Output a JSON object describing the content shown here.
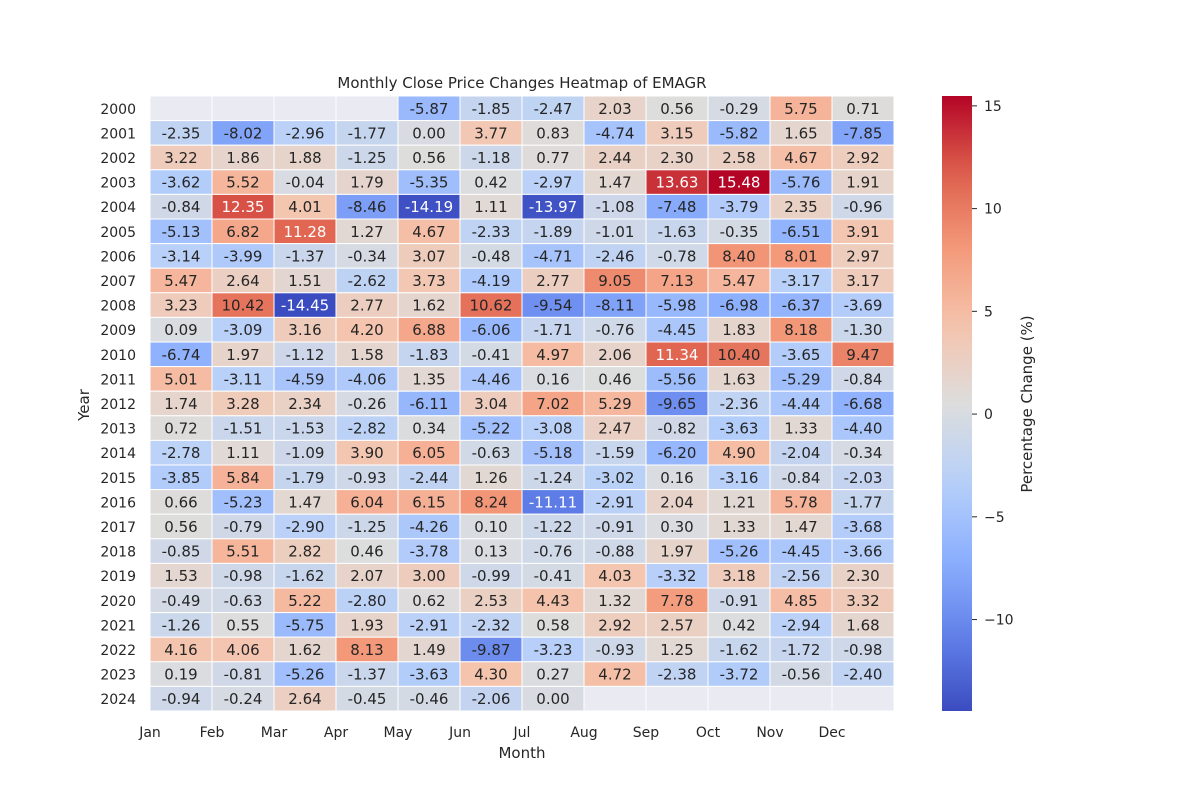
{
  "chart_data": {
    "type": "heatmap",
    "title": "Monthly Close Price Changes Heatmap of EMAGR",
    "xlabel": "Month",
    "ylabel": "Year",
    "colorbar_label": "Percentage Change (%)",
    "colorbar_ticks": [
      "−10",
      "−5",
      "0",
      "5",
      "10",
      "15"
    ],
    "colorbar_tick_values": [
      -10,
      -5,
      0,
      5,
      10,
      15
    ],
    "value_range": [
      -14.45,
      15.48
    ],
    "colormap": "coolwarm",
    "missing_color": "#eaeaf2",
    "months": [
      "Jan",
      "Feb",
      "Mar",
      "Apr",
      "May",
      "Jun",
      "Jul",
      "Aug",
      "Sep",
      "Oct",
      "Nov",
      "Dec"
    ],
    "years": [
      "2000",
      "2001",
      "2002",
      "2003",
      "2004",
      "2005",
      "2006",
      "2007",
      "2008",
      "2009",
      "2010",
      "2011",
      "2012",
      "2013",
      "2014",
      "2015",
      "2016",
      "2017",
      "2018",
      "2019",
      "2020",
      "2021",
      "2022",
      "2023",
      "2024"
    ],
    "values": [
      [
        null,
        null,
        null,
        null,
        -5.87,
        -1.85,
        -2.47,
        2.03,
        0.56,
        -0.29,
        5.75,
        0.71
      ],
      [
        -2.35,
        -8.02,
        -2.96,
        -1.77,
        0.0,
        3.77,
        0.83,
        -4.74,
        3.15,
        -5.82,
        1.65,
        -7.85
      ],
      [
        3.22,
        1.86,
        1.88,
        -1.25,
        0.56,
        -1.18,
        0.77,
        2.44,
        2.3,
        2.58,
        4.67,
        2.92
      ],
      [
        -3.62,
        5.52,
        -0.04,
        1.79,
        -5.35,
        0.42,
        -2.97,
        1.47,
        13.63,
        15.48,
        -5.76,
        1.91
      ],
      [
        -0.84,
        12.35,
        4.01,
        -8.46,
        -14.19,
        1.11,
        -13.97,
        -1.08,
        -7.48,
        -3.79,
        2.35,
        -0.96
      ],
      [
        -5.13,
        6.82,
        11.28,
        1.27,
        4.67,
        -2.33,
        -1.89,
        -1.01,
        -1.63,
        -0.35,
        -6.51,
        3.91
      ],
      [
        -3.14,
        -3.99,
        -1.37,
        -0.34,
        3.07,
        -0.48,
        -4.71,
        -2.46,
        -0.78,
        8.4,
        8.01,
        2.97
      ],
      [
        5.47,
        2.64,
        1.51,
        -2.62,
        3.73,
        -4.19,
        2.77,
        9.05,
        7.13,
        5.47,
        -3.17,
        3.17
      ],
      [
        3.23,
        10.42,
        -14.45,
        2.77,
        1.62,
        10.62,
        -9.54,
        -8.11,
        -5.98,
        -6.98,
        -6.37,
        -3.69
      ],
      [
        0.09,
        -3.09,
        3.16,
        4.2,
        6.88,
        -6.06,
        -1.71,
        -0.76,
        -4.45,
        1.83,
        8.18,
        -1.3
      ],
      [
        -6.74,
        1.97,
        -1.12,
        1.58,
        -1.83,
        -0.41,
        4.97,
        2.06,
        11.34,
        10.4,
        -3.65,
        9.47
      ],
      [
        5.01,
        -3.11,
        -4.59,
        -4.06,
        1.35,
        -4.46,
        0.16,
        0.46,
        -5.56,
        1.63,
        -5.29,
        -0.84
      ],
      [
        1.74,
        3.28,
        2.34,
        -0.26,
        -6.11,
        3.04,
        7.02,
        5.29,
        -9.65,
        -2.36,
        -4.44,
        -6.68
      ],
      [
        0.72,
        -1.51,
        -1.53,
        -2.82,
        0.34,
        -5.22,
        -3.08,
        2.47,
        -0.82,
        -3.63,
        1.33,
        -4.4
      ],
      [
        -2.78,
        1.11,
        -1.09,
        3.9,
        6.05,
        -0.63,
        -5.18,
        -1.59,
        -6.2,
        4.9,
        -2.04,
        -0.34
      ],
      [
        -3.85,
        5.84,
        -1.79,
        -0.93,
        -2.44,
        1.26,
        -1.24,
        -3.02,
        0.16,
        -3.16,
        -0.84,
        -2.03
      ],
      [
        0.66,
        -5.23,
        1.47,
        6.04,
        6.15,
        8.24,
        -11.11,
        -2.91,
        2.04,
        1.21,
        5.78,
        -1.77
      ],
      [
        0.56,
        -0.79,
        -2.9,
        -1.25,
        -4.26,
        0.1,
        -1.22,
        -0.91,
        0.3,
        1.33,
        1.47,
        -3.68
      ],
      [
        -0.85,
        5.51,
        2.82,
        0.46,
        -3.78,
        0.13,
        -0.76,
        -0.88,
        1.97,
        -5.26,
        -4.45,
        -3.66
      ],
      [
        1.53,
        -0.98,
        -1.62,
        2.07,
        3.0,
        -0.99,
        -0.41,
        4.03,
        -3.32,
        3.18,
        -2.56,
        2.3
      ],
      [
        -0.49,
        -0.63,
        5.22,
        -2.8,
        0.62,
        2.53,
        4.43,
        1.32,
        7.78,
        -0.91,
        4.85,
        3.32
      ],
      [
        -1.26,
        0.55,
        -5.75,
        1.93,
        -2.91,
        -2.32,
        0.58,
        2.92,
        2.57,
        0.42,
        -2.94,
        1.68
      ],
      [
        4.16,
        4.06,
        1.62,
        8.13,
        1.49,
        -9.87,
        -3.23,
        -0.93,
        1.25,
        -1.62,
        -1.72,
        -0.98
      ],
      [
        0.19,
        -0.81,
        -5.26,
        -1.37,
        -3.63,
        4.3,
        0.27,
        4.72,
        -2.38,
        -3.72,
        -0.56,
        -2.4
      ],
      [
        -0.94,
        -0.24,
        2.64,
        -0.45,
        -0.46,
        -2.06,
        0.0,
        null,
        null,
        null,
        null,
        null
      ]
    ]
  }
}
